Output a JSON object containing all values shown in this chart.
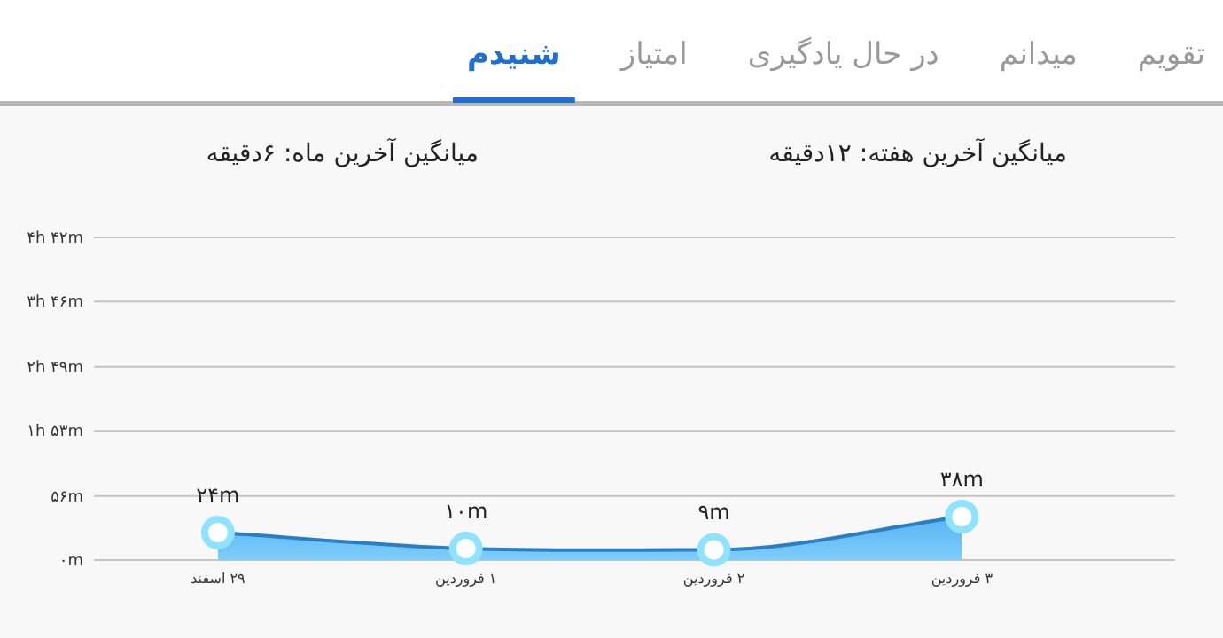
{
  "chart_data": {
    "type": "area",
    "title": "میانگین آخرین هفته: ۱۲دقیقه",
    "subtitle": "میانگین آخرین ماه: ۶دقیقه",
    "annotations": [
      "تقویم",
      "میدانم",
      "در حال یادگیری",
      "امتیاز",
      "شنیدم"
    ],
    "categories": [
      "۲۹ اسفند",
      "۱ فروردین",
      "۲ فروردین",
      "۳ فروردین"
    ],
    "series": [
      {
        "color": "#2a7fc4",
        "values": [
          24,
          10,
          9,
          38
        ],
        "value_labels": [
          "۲۴m",
          "۱۰m",
          "۹m",
          "۳۸m"
        ]
      }
    ],
    "ylim": [
      0,
      282
    ],
    "yticks": [
      {
        "value": 0,
        "label": "۰m"
      },
      {
        "value": 56,
        "label": "۵۶m"
      },
      {
        "value": 113,
        "label": "۱h ۵۳m"
      },
      {
        "value": 169,
        "label": "۲h ۴۹m"
      },
      {
        "value": 226,
        "label": "۳h ۴۶m"
      },
      {
        "value": 282,
        "label": "۴h ۴۲m"
      }
    ],
    "grid": "y",
    "marker": "circle"
  }
}
